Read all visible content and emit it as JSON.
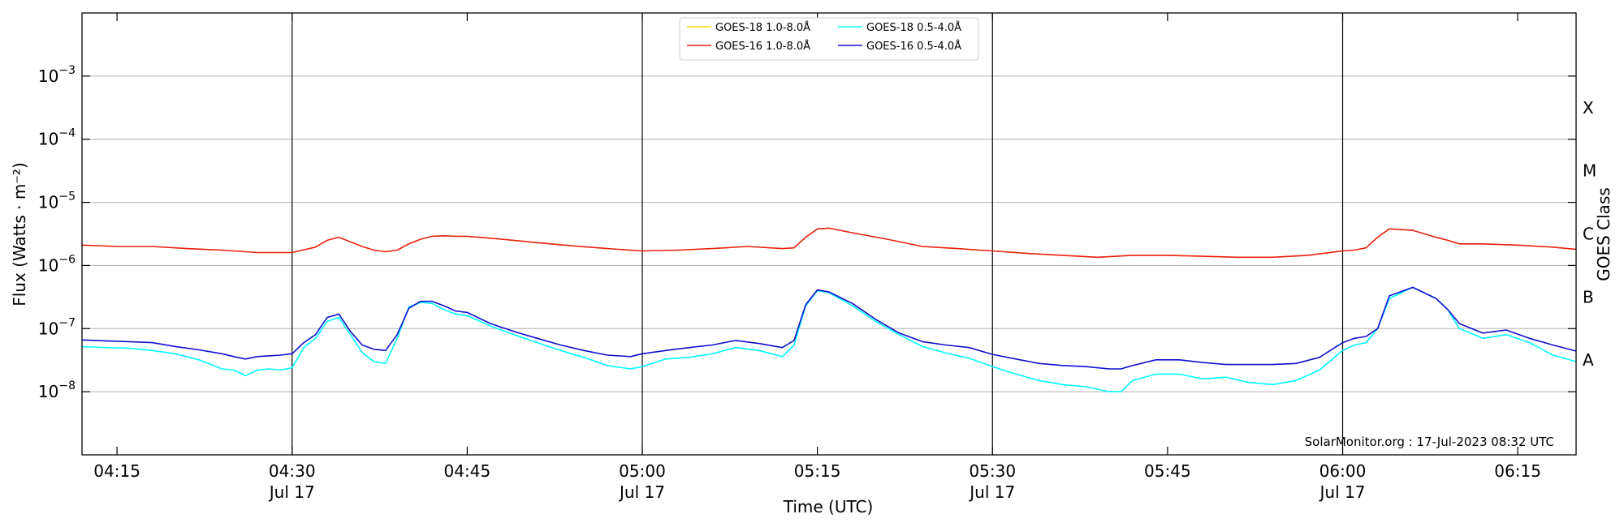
{
  "chart_data": {
    "type": "line",
    "xlabel": "Time (UTC)",
    "ylabel": "Flux (Watts · m⁻²)",
    "right_axis_label": "GOES Class",
    "credit": "SolarMonitor.org : 17-Jul-2023 08:32 UTC",
    "x_unit": "time UTC, 17-Jul-2023",
    "xlim": [
      "04:12",
      "06:20"
    ],
    "ylim": [
      1e-09,
      0.01
    ],
    "y_scale": "log",
    "grid": "horizontal at decades",
    "legend_position": "top-center",
    "x_ticks": [
      {
        "time": "04:15",
        "label": "04:15",
        "sublabel": ""
      },
      {
        "time": "04:30",
        "label": "04:30",
        "sublabel": "Jul 17"
      },
      {
        "time": "04:45",
        "label": "04:45",
        "sublabel": ""
      },
      {
        "time": "05:00",
        "label": "05:00",
        "sublabel": "Jul 17"
      },
      {
        "time": "05:15",
        "label": "05:15",
        "sublabel": ""
      },
      {
        "time": "05:30",
        "label": "05:30",
        "sublabel": "Jul 17"
      },
      {
        "time": "05:45",
        "label": "05:45",
        "sublabel": ""
      },
      {
        "time": "06:00",
        "label": "06:00",
        "sublabel": "Jul 17"
      },
      {
        "time": "06:15",
        "label": "06:15",
        "sublabel": ""
      }
    ],
    "y_ticks": [
      {
        "value": 1e-08,
        "label": "10",
        "exp": "−8"
      },
      {
        "value": 1e-07,
        "label": "10",
        "exp": "−7"
      },
      {
        "value": 1e-06,
        "label": "10",
        "exp": "−6"
      },
      {
        "value": 1e-05,
        "label": "10",
        "exp": "−5"
      },
      {
        "value": 0.0001,
        "label": "10",
        "exp": "−4"
      },
      {
        "value": 0.001,
        "label": "10",
        "exp": "−3"
      }
    ],
    "goes_classes": [
      {
        "label": "A",
        "value": 3.16e-08
      },
      {
        "label": "B",
        "value": 3.16e-07
      },
      {
        "label": "C",
        "value": 3.16e-06
      },
      {
        "label": "M",
        "value": 3.16e-05
      },
      {
        "label": "X",
        "value": 0.000316
      }
    ],
    "day_markers": [
      "04:30",
      "05:00",
      "05:30",
      "06:00"
    ],
    "series": [
      {
        "name": "GOES-18 1.0-8.0Å",
        "color": "#ffd700",
        "times": [],
        "values": []
      },
      {
        "name": "GOES-16 1.0-8.0Å",
        "color": "#e8200a",
        "times": [
          "04:12",
          "04:15",
          "04:18",
          "04:21",
          "04:24",
          "04:27",
          "04:30",
          "04:32",
          "04:33",
          "04:34",
          "04:36",
          "04:37",
          "04:38",
          "04:39",
          "04:40",
          "04:41",
          "04:42",
          "04:43",
          "04:44",
          "04:45",
          "04:48",
          "04:51",
          "04:54",
          "04:57",
          "05:00",
          "05:03",
          "05:06",
          "05:09",
          "05:12",
          "05:13",
          "05:14",
          "05:15",
          "05:16",
          "05:18",
          "05:21",
          "05:24",
          "05:27",
          "05:30",
          "05:33",
          "05:36",
          "05:39",
          "05:42",
          "05:45",
          "05:48",
          "05:51",
          "05:54",
          "05:57",
          "06:00",
          "06:01",
          "06:02",
          "06:03",
          "06:04",
          "06:06",
          "06:08",
          "06:09",
          "06:10",
          "06:12",
          "06:15",
          "06:18",
          "06:20"
        ],
        "values": [
          2.1e-06,
          2e-06,
          2e-06,
          1.85e-06,
          1.75e-06,
          1.6e-06,
          1.6e-06,
          1.95e-06,
          2.5e-06,
          2.8e-06,
          2e-06,
          1.75e-06,
          1.65e-06,
          1.75e-06,
          2.2e-06,
          2.6e-06,
          2.9e-06,
          2.95e-06,
          2.9e-06,
          2.9e-06,
          2.6e-06,
          2.3e-06,
          2.05e-06,
          1.85e-06,
          1.7e-06,
          1.75e-06,
          1.85e-06,
          2e-06,
          1.85e-06,
          1.9e-06,
          2.8e-06,
          3.8e-06,
          3.9e-06,
          3.3e-06,
          2.6e-06,
          2e-06,
          1.85e-06,
          1.7e-06,
          1.55e-06,
          1.45e-06,
          1.35e-06,
          1.45e-06,
          1.45e-06,
          1.4e-06,
          1.35e-06,
          1.35e-06,
          1.45e-06,
          1.7e-06,
          1.75e-06,
          1.9e-06,
          2.8e-06,
          3.8e-06,
          3.6e-06,
          2.8e-06,
          2.5e-06,
          2.2e-06,
          2.2e-06,
          2.1e-06,
          1.95e-06,
          1.8e-06
        ]
      },
      {
        "name": "GOES-18 0.5-4.0Å",
        "color": "#00ffff",
        "times": [
          "04:12",
          "04:14",
          "04:16",
          "04:18",
          "04:20",
          "04:22",
          "04:24",
          "04:25",
          "04:26",
          "04:27",
          "04:28",
          "04:29",
          "04:30",
          "04:31",
          "04:32",
          "04:33",
          "04:34",
          "04:35",
          "04:36",
          "04:37",
          "04:38",
          "04:39",
          "04:40",
          "04:41",
          "04:42",
          "04:43",
          "04:44",
          "04:45",
          "04:47",
          "04:49",
          "04:51",
          "04:53",
          "04:55",
          "04:57",
          "04:59",
          "05:00",
          "05:02",
          "05:04",
          "05:06",
          "05:08",
          "05:10",
          "05:12",
          "05:13",
          "05:14",
          "05:15",
          "05:16",
          "05:18",
          "05:20",
          "05:22",
          "05:24",
          "05:26",
          "05:28",
          "05:30",
          "05:32",
          "05:34",
          "05:36",
          "05:38",
          "05:40",
          "05:41",
          "05:42",
          "05:44",
          "05:46",
          "05:48",
          "05:50",
          "05:52",
          "05:54",
          "05:56",
          "05:58",
          "06:00",
          "06:01",
          "06:02",
          "06:03",
          "06:04",
          "06:06",
          "06:08",
          "06:09",
          "06:10",
          "06:12",
          "06:14",
          "06:16",
          "06:18",
          "06:20"
        ],
        "values": [
          5.2e-08,
          5e-08,
          4.9e-08,
          4.5e-08,
          4e-08,
          3.2e-08,
          2.3e-08,
          2.2e-08,
          1.8e-08,
          2.2e-08,
          2.3e-08,
          2.2e-08,
          2.4e-08,
          5e-08,
          7e-08,
          1.3e-07,
          1.5e-07,
          8e-08,
          4.2e-08,
          3e-08,
          2.8e-08,
          7e-08,
          2.2e-07,
          2.6e-07,
          2.5e-07,
          2e-07,
          1.7e-07,
          1.6e-07,
          1.1e-07,
          8e-08,
          6e-08,
          4.5e-08,
          3.5e-08,
          2.6e-08,
          2.3e-08,
          2.5e-08,
          3.3e-08,
          3.5e-08,
          4e-08,
          5e-08,
          4.5e-08,
          3.6e-08,
          5.5e-08,
          2.3e-07,
          4e-07,
          3.7e-07,
          2.3e-07,
          1.3e-07,
          8e-08,
          5.2e-08,
          4.1e-08,
          3.4e-08,
          2.5e-08,
          1.9e-08,
          1.5e-08,
          1.3e-08,
          1.2e-08,
          1e-08,
          1e-08,
          1.5e-08,
          1.9e-08,
          1.9e-08,
          1.6e-08,
          1.7e-08,
          1.4e-08,
          1.3e-08,
          1.5e-08,
          2.2e-08,
          4.5e-08,
          5.5e-08,
          6e-08,
          1e-07,
          3e-07,
          4.5e-07,
          3e-07,
          2e-07,
          1e-07,
          7e-08,
          8e-08,
          6e-08,
          3.8e-08,
          3e-08
        ]
      },
      {
        "name": "GOES-16 0.5-4.0Å",
        "color": "#1010d0",
        "times": [
          "04:12",
          "04:14",
          "04:16",
          "04:18",
          "04:20",
          "04:22",
          "04:24",
          "04:25",
          "04:26",
          "04:27",
          "04:28",
          "04:29",
          "04:30",
          "04:31",
          "04:32",
          "04:33",
          "04:34",
          "04:35",
          "04:36",
          "04:37",
          "04:38",
          "04:39",
          "04:40",
          "04:41",
          "04:42",
          "04:43",
          "04:44",
          "04:45",
          "04:47",
          "04:49",
          "04:51",
          "04:53",
          "04:55",
          "04:57",
          "04:59",
          "05:00",
          "05:02",
          "05:04",
          "05:06",
          "05:08",
          "05:10",
          "05:12",
          "05:13",
          "05:14",
          "05:15",
          "05:16",
          "05:18",
          "05:20",
          "05:22",
          "05:24",
          "05:26",
          "05:28",
          "05:30",
          "05:32",
          "05:34",
          "05:36",
          "05:38",
          "05:40",
          "05:41",
          "05:42",
          "05:44",
          "05:46",
          "05:48",
          "05:50",
          "05:52",
          "05:54",
          "05:56",
          "05:58",
          "06:00",
          "06:01",
          "06:02",
          "06:03",
          "06:04",
          "06:06",
          "06:08",
          "06:09",
          "06:10",
          "06:12",
          "06:14",
          "06:16",
          "06:18",
          "06:20"
        ],
        "values": [
          6.6e-08,
          6.4e-08,
          6.2e-08,
          6e-08,
          5.2e-08,
          4.6e-08,
          4e-08,
          3.6e-08,
          3.3e-08,
          3.6e-08,
          3.7e-08,
          3.8e-08,
          4e-08,
          6e-08,
          8e-08,
          1.5e-07,
          1.7e-07,
          9e-08,
          5.5e-08,
          4.7e-08,
          4.5e-08,
          8e-08,
          2.1e-07,
          2.7e-07,
          2.7e-07,
          2.3e-07,
          1.9e-07,
          1.8e-07,
          1.2e-07,
          9e-08,
          7e-08,
          5.5e-08,
          4.5e-08,
          3.8e-08,
          3.6e-08,
          4e-08,
          4.5e-08,
          5e-08,
          5.5e-08,
          6.5e-08,
          5.8e-08,
          5e-08,
          6.5e-08,
          2.4e-07,
          4.1e-07,
          3.8e-07,
          2.5e-07,
          1.4e-07,
          8.5e-08,
          6.2e-08,
          5.5e-08,
          5e-08,
          3.9e-08,
          3.3e-08,
          2.8e-08,
          2.6e-08,
          2.5e-08,
          2.3e-08,
          2.3e-08,
          2.6e-08,
          3.2e-08,
          3.2e-08,
          2.9e-08,
          2.7e-08,
          2.7e-08,
          2.7e-08,
          2.8e-08,
          3.5e-08,
          6e-08,
          7e-08,
          7.5e-08,
          1e-07,
          3.3e-07,
          4.5e-07,
          3e-07,
          2e-07,
          1.2e-07,
          8.5e-08,
          9.5e-08,
          7e-08,
          5.5e-08,
          4.4e-08
        ]
      }
    ]
  }
}
